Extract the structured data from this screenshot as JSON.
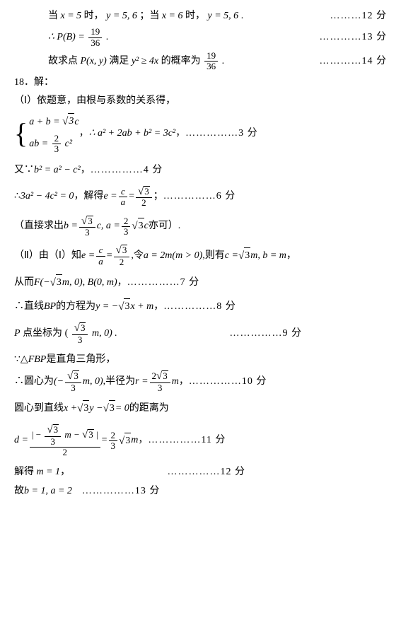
{
  "lines": {
    "l1_a": "当",
    "l1_b": "时，",
    "l1_c": "；当",
    "l1_d": "时，",
    "l1_e": ".",
    "score12": "………12 分",
    "score13": "…………13 分",
    "score14": "…………14 分",
    "l3_a": "故求点",
    "l3_b": "满足",
    "l3_c": "的概率为",
    "q18": "18．解：",
    "p1": "（Ⅰ）依题意，由根与系数的关系得，",
    "sys_note": "，",
    "score3": "……………3 分",
    "l_b2": "又∵",
    "l_b2_c": "，",
    "score4": "……………4 分",
    "l_3a2": "∴",
    "l_solve": "，解得",
    "score6": "……………6 分",
    "direct_a": "（直接求出",
    "direct_b": "亦可）.",
    "p2_a": "（Ⅱ）由（Ⅰ）知",
    "p2_b": ",令",
    "p2_c": ",则有",
    "conghou": "从而",
    "score7": "……………7 分",
    "bp_a": "∴直线",
    "bp_b": "的方程为",
    "score8": "……………8 分",
    "p_coord_a": "点坐标为",
    "score9": "……………9 分",
    "tri_a": "∵△",
    "tri_b": "是直角三角形，",
    "circ_a": "∴圆心为",
    "circ_b": ",半径为",
    "score10": "……………10 分",
    "dist_a": "圆心到直线",
    "dist_b": "的距离为",
    "score11": "……………11 分",
    "solve_m": "解得",
    "scm12": "……………12 分",
    "final_a": "故",
    "scm13": "……………13 分"
  },
  "math": {
    "x5": "x = 5",
    "y56a": "y = 5, 6",
    "x6": "x = 6",
    "y56b": "y = 5, 6",
    "PB": "∴ P(B) =",
    "f19_36_n": "19",
    "f19_36_d": "36",
    "Pxy": "P(x, y)",
    "y2_4x": "y² ≥ 4x",
    "ab_eq": "a + b =",
    "sqrt3c": "3",
    "c_after": "c",
    "ab2": "ab =",
    "f2_3n": "2",
    "f2_3d": "3",
    "c2": "c²",
    "a2_expand": "∴ a² + 2ab + b² = 3c²",
    "b2_eq": "b² = a² − c²",
    "3a2_4c2": "3a² − 4c² = 0",
    "e_eq": "e =",
    "fc_a_n": "c",
    "fc_a_d": "a",
    "eq_sign": " = ",
    "sqrt3_2n": "3",
    "sqrt3_2d": "2",
    "semicolon": "；",
    "b_eq": "b =",
    "sqrt3_3n": "3",
    "sqrt3_3d": "3",
    "c_comma": "c, a =",
    "sqrt3c2": "3",
    "c_tail": "c",
    "a2m": "a = 2m(m > 0)",
    "c_sqrt3m": "c =",
    "sqrt3m": "3",
    "m_b_m": "m, b = m",
    "F_neg": "F(−",
    "m0_B0m": "m, 0), B(0, m)",
    "BP": "BP",
    "y_eq_neg": "y = −",
    "x_m": "x + m",
    "P_letter": "P",
    "m0_paren": "m, 0) .",
    "FBP": "FBP",
    "neg_paren": "(−",
    "m0_r": "m, 0)",
    "r_eq": "r =",
    "f2sqrt3_3n": "3",
    "f2sqrt3_3d": "3",
    "m_comma": "m",
    "line_eq": "x +",
    "sqrt3y": "3",
    "y_minus": "y −",
    "sqrt3_eq0": "3",
    "eq0": " = 0",
    "d_eq": "d =",
    "abs_open": "| −",
    "m_minus": "m −",
    "abs_close": " |",
    "den2": "2",
    "eq_2_3": " = ",
    "sqrt3m_end": "3",
    "m_end": "m",
    "m1": "m = 1",
    "b1a2": "b = 1, a = 2"
  }
}
